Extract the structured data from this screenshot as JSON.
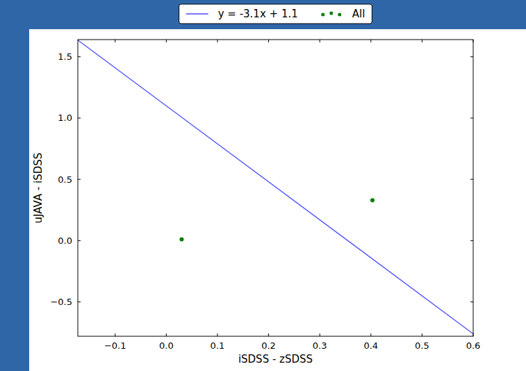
{
  "chart_data": {
    "type": "scatter",
    "x_label": "iSDSS - zSDSS",
    "y_label": "uJAVA - iSDSS",
    "xlim": [
      -0.173,
      0.6
    ],
    "ylim": [
      -0.78,
      1.64
    ],
    "xticks": [
      {
        "value": -0.1,
        "label": "−0.1"
      },
      {
        "value": 0,
        "label": "0.0"
      },
      0.1,
      0.2,
      0.3,
      0.4,
      0.5,
      0.6
    ],
    "yticks": [
      {
        "value": -0.5,
        "label": "−0.5"
      },
      {
        "value": 0,
        "label": "0.0"
      },
      0.5,
      {
        "value": 1,
        "label": "1.0"
      },
      1.5
    ],
    "legend": "top",
    "grid": false,
    "series": [
      {
        "name": "y = -3.1x + 1.1",
        "type": "line",
        "color": "#4a4aff",
        "line_style": "solid",
        "x": [
          -0.173,
          0.6
        ],
        "values": [
          1.636,
          -0.76
        ]
      },
      {
        "name": "All",
        "type": "scatter",
        "color": "#008000",
        "marker": "circle",
        "x": [
          0.03,
          0.403
        ],
        "values": [
          0.01,
          0.33
        ]
      }
    ]
  }
}
